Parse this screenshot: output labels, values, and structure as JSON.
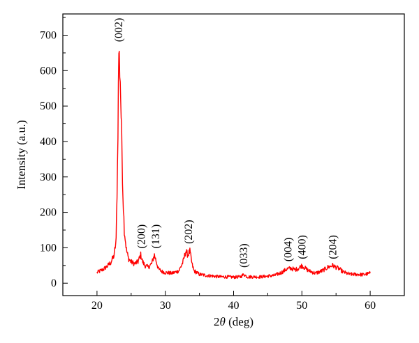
{
  "chart_data": {
    "type": "line",
    "title": "",
    "xlabel": "2θ (deg)",
    "xlabel_parts": {
      "var": "2",
      "theta": "θ",
      "unit": " (deg)"
    },
    "ylabel": "Intensity (a.u.)",
    "xlim": [
      15,
      65
    ],
    "ylim": [
      -35,
      760
    ],
    "xticks": [
      20,
      30,
      40,
      50,
      60
    ],
    "yticks": [
      0,
      100,
      200,
      300,
      400,
      500,
      600,
      700
    ],
    "grid": false,
    "legend": "none",
    "series": [
      {
        "color": "#ff0000",
        "x": [
          20,
          20.5,
          21,
          21.5,
          22,
          22.5,
          22.8,
          23.0,
          23.2,
          23.4,
          23.6,
          23.8,
          24.0,
          24.3,
          24.6,
          25.0,
          25.5,
          26.0,
          26.4,
          26.7,
          27.0,
          27.5,
          28.0,
          28.4,
          28.7,
          29.0,
          29.5,
          30.0,
          31.0,
          32.0,
          32.6,
          33.0,
          33.3,
          33.6,
          33.9,
          34.2,
          34.6,
          35.0,
          36.0,
          37.0,
          38.0,
          39.0,
          40.0,
          41.0,
          41.5,
          42.0,
          43.0,
          44.0,
          45.0,
          46.0,
          47.0,
          47.8,
          48.4,
          49.0,
          49.5,
          50.0,
          50.5,
          51.0,
          52.0,
          53.0,
          53.8,
          54.5,
          55.0,
          55.5,
          56.0,
          57.0,
          58.0,
          59.0,
          60.0
        ],
        "y": [
          30,
          35,
          40,
          48,
          58,
          78,
          120,
          330,
          660,
          580,
          420,
          250,
          150,
          95,
          70,
          60,
          55,
          60,
          80,
          60,
          50,
          45,
          55,
          80,
          60,
          40,
          33,
          30,
          28,
          35,
          60,
          90,
          80,
          90,
          55,
          35,
          30,
          25,
          22,
          20,
          18,
          18,
          17,
          18,
          25,
          18,
          18,
          18,
          20,
          22,
          30,
          40,
          42,
          38,
          42,
          50,
          42,
          35,
          28,
          35,
          45,
          50,
          45,
          40,
          32,
          25,
          25,
          24,
          28
        ]
      }
    ],
    "annotations": [
      {
        "text": "(002)",
        "x": 23.2,
        "y": 665
      },
      {
        "text": "(200)",
        "x": 26.5,
        "y": 82
      },
      {
        "text": "(131)",
        "x": 28.6,
        "y": 82
      },
      {
        "text": "(202)",
        "x": 33.4,
        "y": 95
      },
      {
        "text": "(033)",
        "x": 41.5,
        "y": 28
      },
      {
        "text": "(004)",
        "x": 48.0,
        "y": 45
      },
      {
        "text": "(400)",
        "x": 50.0,
        "y": 52
      },
      {
        "text": "(204)",
        "x": 54.5,
        "y": 52
      }
    ]
  }
}
